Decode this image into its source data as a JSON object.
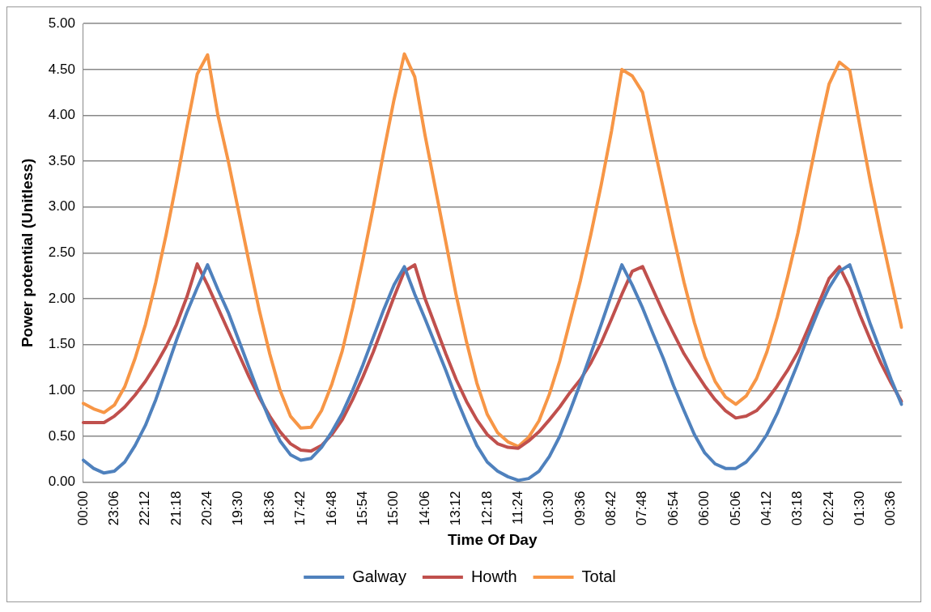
{
  "chart_data": {
    "type": "line",
    "xlabel": "Time Of Day",
    "ylabel": "Power potential (Unitless)",
    "categories": [
      "00:00",
      null,
      null,
      "23:06",
      null,
      null,
      "22:12",
      null,
      null,
      "21:18",
      null,
      null,
      "20:24",
      null,
      null,
      "19:30",
      null,
      null,
      "18:36",
      null,
      null,
      "17:42",
      null,
      null,
      "16:48",
      null,
      null,
      "15:54",
      null,
      null,
      "15:00",
      null,
      null,
      "14:06",
      null,
      null,
      "13:12",
      null,
      null,
      "12:18",
      null,
      null,
      "11:24",
      null,
      null,
      "10:30",
      null,
      null,
      "09:36",
      null,
      null,
      "08:42",
      null,
      null,
      "07:48",
      null,
      null,
      "06:54",
      null,
      null,
      "06:00",
      null,
      null,
      "05:06",
      null,
      null,
      "04:12",
      null,
      null,
      "03:18",
      null,
      null,
      "02:24",
      null,
      null,
      "01:30",
      null,
      null,
      "00:36",
      null
    ],
    "series": [
      {
        "name": "Galway",
        "color": "#4f81bd",
        "values": [
          0.24,
          0.15,
          0.1,
          0.12,
          0.22,
          0.4,
          0.62,
          0.9,
          1.22,
          1.55,
          1.85,
          2.12,
          2.37,
          2.1,
          1.85,
          1.55,
          1.25,
          0.95,
          0.68,
          0.45,
          0.3,
          0.24,
          0.26,
          0.38,
          0.55,
          0.75,
          1.0,
          1.28,
          1.58,
          1.88,
          2.15,
          2.35,
          2.05,
          1.78,
          1.5,
          1.22,
          0.92,
          0.65,
          0.4,
          0.22,
          0.12,
          0.06,
          0.02,
          0.04,
          0.12,
          0.28,
          0.5,
          0.78,
          1.08,
          1.4,
          1.72,
          2.05,
          2.37,
          2.15,
          1.9,
          1.62,
          1.35,
          1.05,
          0.78,
          0.52,
          0.32,
          0.2,
          0.15,
          0.15,
          0.22,
          0.35,
          0.52,
          0.75,
          1.02,
          1.3,
          1.6,
          1.88,
          2.12,
          2.3,
          2.37,
          2.05,
          1.72,
          1.42,
          1.12,
          0.85
        ]
      },
      {
        "name": "Howth",
        "color": "#c0504d",
        "values": [
          0.65,
          0.65,
          0.65,
          0.72,
          0.82,
          0.95,
          1.1,
          1.28,
          1.48,
          1.72,
          2.02,
          2.38,
          2.15,
          1.9,
          1.65,
          1.4,
          1.15,
          0.92,
          0.72,
          0.55,
          0.42,
          0.35,
          0.34,
          0.4,
          0.52,
          0.68,
          0.9,
          1.15,
          1.42,
          1.72,
          2.02,
          2.3,
          2.37,
          2.0,
          1.7,
          1.4,
          1.12,
          0.88,
          0.68,
          0.52,
          0.42,
          0.38,
          0.37,
          0.45,
          0.55,
          0.68,
          0.82,
          0.98,
          1.12,
          1.3,
          1.52,
          1.78,
          2.05,
          2.3,
          2.35,
          2.1,
          1.85,
          1.62,
          1.4,
          1.22,
          1.05,
          0.9,
          0.78,
          0.7,
          0.72,
          0.78,
          0.9,
          1.05,
          1.22,
          1.42,
          1.68,
          1.95,
          2.22,
          2.35,
          2.12,
          1.82,
          1.55,
          1.3,
          1.08,
          0.88
        ]
      },
      {
        "name": "Total",
        "color": "#f79646",
        "values": [
          0.86,
          0.8,
          0.76,
          0.84,
          1.04,
          1.35,
          1.72,
          2.18,
          2.7,
          3.27,
          3.87,
          4.45,
          4.66,
          4.0,
          3.5,
          2.95,
          2.4,
          1.87,
          1.4,
          1.0,
          0.72,
          0.59,
          0.6,
          0.78,
          1.07,
          1.43,
          1.9,
          2.43,
          3.0,
          3.6,
          4.17,
          4.67,
          4.42,
          3.78,
          3.2,
          2.62,
          2.04,
          1.53,
          1.08,
          0.74,
          0.54,
          0.44,
          0.39,
          0.49,
          0.67,
          0.96,
          1.32,
          1.76,
          2.2,
          2.7,
          3.24,
          3.83,
          4.5,
          4.43,
          4.25,
          3.72,
          3.2,
          2.67,
          2.18,
          1.74,
          1.37,
          1.1,
          0.93,
          0.85,
          0.94,
          1.13,
          1.42,
          1.8,
          2.24,
          2.72,
          3.28,
          3.83,
          4.34,
          4.58,
          4.49,
          3.87,
          3.27,
          2.72,
          2.2,
          1.69
        ]
      }
    ],
    "ylim": [
      0,
      5
    ],
    "yticks": [
      {
        "value": 0,
        "label": "0.00"
      },
      {
        "value": 0.5,
        "label": "0.50"
      },
      {
        "value": 1,
        "label": "1.00"
      },
      {
        "value": 1.5,
        "label": "1.50"
      },
      {
        "value": 2,
        "label": "2.00"
      },
      {
        "value": 2.5,
        "label": "2.50"
      },
      {
        "value": 3,
        "label": "3.00"
      },
      {
        "value": 3.5,
        "label": "3.50"
      },
      {
        "value": 4,
        "label": "4.00"
      },
      {
        "value": 4.5,
        "label": "4.50"
      },
      {
        "value": 5,
        "label": "5.00"
      }
    ],
    "grid": "y",
    "legend": "bottom",
    "marker": "none",
    "line_style": "solid"
  }
}
